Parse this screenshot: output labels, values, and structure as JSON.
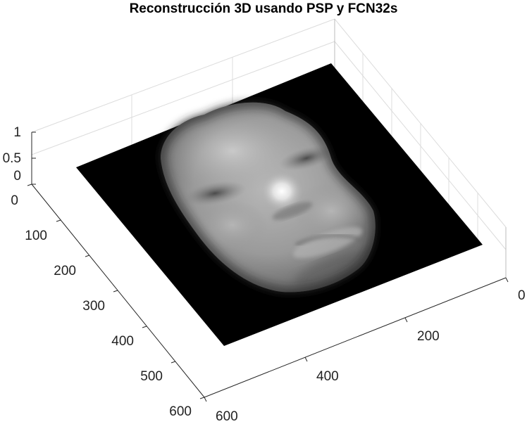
{
  "chart_data": {
    "type": "surface",
    "title": "Reconstrucción 3D usando PSP y FCN32s",
    "xlabel": "",
    "ylabel": "",
    "zlabel": "",
    "x_ticks": [
      "0",
      "200",
      "400",
      "600"
    ],
    "y_ticks": [
      "0",
      "100",
      "200",
      "300",
      "400",
      "500",
      "600"
    ],
    "z_ticks": [
      "0",
      "0.5",
      "1"
    ],
    "xlim": [
      0,
      600
    ],
    "ylim": [
      0,
      600
    ],
    "zlim": [
      0,
      1
    ],
    "colormap": "gray",
    "grid": true,
    "surface": "3D reconstructed face depth map on a flat black background plane (values 0 to 1)"
  }
}
